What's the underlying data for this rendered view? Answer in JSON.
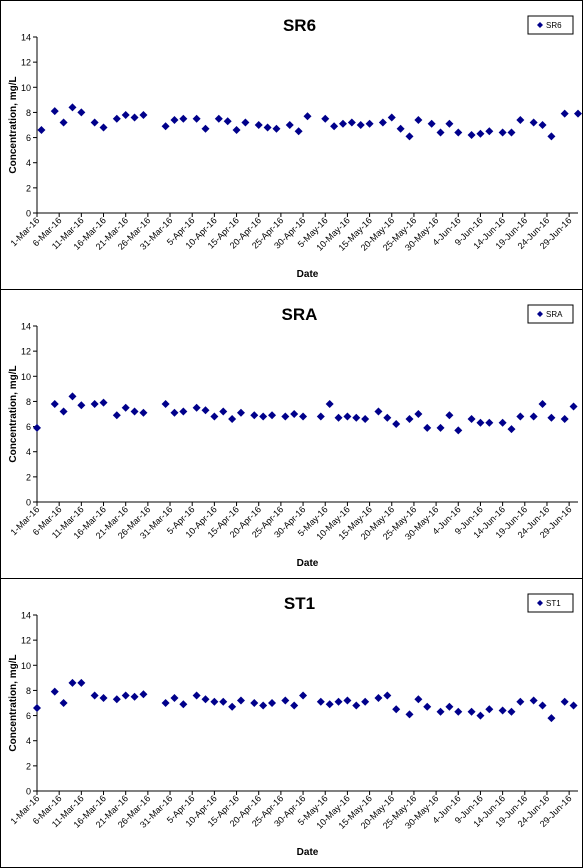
{
  "colors": {
    "marker": "#00008B",
    "axis": "#000000",
    "background": "#ffffff"
  },
  "chart_data": [
    {
      "type": "scatter",
      "title": "SR6",
      "xlabel": "Date",
      "ylabel": "Concentration, mg/L",
      "ylim": [
        0,
        14
      ],
      "yticks": [
        "0",
        "2",
        "4",
        "6",
        "8",
        "10",
        "12",
        "14"
      ],
      "xlim": [
        "2016-03-01",
        "2016-07-01"
      ],
      "xticks": [
        "1-Mar-16",
        "6-Mar-16",
        "11-Mar-16",
        "16-Mar-16",
        "21-Mar-16",
        "26-Mar-16",
        "31-Mar-16",
        "5-Apr-16",
        "10-Apr-16",
        "15-Apr-16",
        "20-Apr-16",
        "25-Apr-16",
        "30-Apr-16",
        "5-May-16",
        "10-May-16",
        "15-May-16",
        "20-May-16",
        "25-May-16",
        "30-May-16",
        "4-Jun-16",
        "9-Jun-16",
        "14-Jun-16",
        "19-Jun-16",
        "24-Jun-16",
        "29-Jun-16"
      ],
      "grid": false,
      "legend_position": "top-right",
      "series": [
        {
          "name": "SR6",
          "x": [
            "2016-03-02",
            "2016-03-05",
            "2016-03-07",
            "2016-03-09",
            "2016-03-11",
            "2016-03-14",
            "2016-03-16",
            "2016-03-19",
            "2016-03-21",
            "2016-03-23",
            "2016-03-25",
            "2016-03-30",
            "2016-04-01",
            "2016-04-03",
            "2016-04-06",
            "2016-04-08",
            "2016-04-11",
            "2016-04-13",
            "2016-04-15",
            "2016-04-17",
            "2016-04-20",
            "2016-04-22",
            "2016-04-24",
            "2016-04-27",
            "2016-04-29",
            "2016-05-01",
            "2016-05-05",
            "2016-05-07",
            "2016-05-09",
            "2016-05-11",
            "2016-05-13",
            "2016-05-15",
            "2016-05-18",
            "2016-05-20",
            "2016-05-22",
            "2016-05-24",
            "2016-05-26",
            "2016-05-29",
            "2016-05-31",
            "2016-06-02",
            "2016-06-04",
            "2016-06-07",
            "2016-06-09",
            "2016-06-11",
            "2016-06-14",
            "2016-06-16",
            "2016-06-18",
            "2016-06-21",
            "2016-06-23",
            "2016-06-25",
            "2016-06-28",
            "2016-07-01"
          ],
          "y": [
            6.6,
            8.1,
            7.2,
            8.4,
            8.0,
            7.2,
            6.8,
            7.5,
            7.8,
            7.6,
            7.8,
            6.9,
            7.4,
            7.5,
            7.5,
            6.7,
            7.5,
            7.3,
            6.6,
            7.2,
            7.0,
            6.8,
            6.7,
            7.0,
            6.5,
            7.7,
            7.5,
            6.9,
            7.1,
            7.2,
            7.0,
            7.1,
            7.2,
            7.6,
            6.7,
            6.1,
            7.4,
            7.1,
            6.4,
            7.1,
            6.4,
            6.2,
            6.3,
            6.5,
            6.4,
            6.4,
            7.4,
            7.2,
            7.0,
            6.1,
            7.9,
            7.9
          ]
        }
      ]
    },
    {
      "type": "scatter",
      "title": "SRA",
      "xlabel": "Date",
      "ylabel": "Concentration, mg/L",
      "ylim": [
        0,
        14
      ],
      "yticks": [
        "0",
        "2",
        "4",
        "6",
        "8",
        "10",
        "12",
        "14"
      ],
      "xlim": [
        "2016-03-01",
        "2016-07-01"
      ],
      "xticks": [
        "1-Mar-16",
        "6-Mar-16",
        "11-Mar-16",
        "16-Mar-16",
        "21-Mar-16",
        "26-Mar-16",
        "31-Mar-16",
        "5-Apr-16",
        "10-Apr-16",
        "15-Apr-16",
        "20-Apr-16",
        "25-Apr-16",
        "30-Apr-16",
        "5-May-16",
        "10-May-16",
        "15-May-16",
        "20-May-16",
        "25-May-16",
        "30-May-16",
        "4-Jun-16",
        "9-Jun-16",
        "14-Jun-16",
        "19-Jun-16",
        "24-Jun-16",
        "29-Jun-16"
      ],
      "grid": false,
      "legend_position": "top-right",
      "series": [
        {
          "name": "SRA",
          "x": [
            "2016-03-01",
            "2016-03-05",
            "2016-03-07",
            "2016-03-09",
            "2016-03-11",
            "2016-03-14",
            "2016-03-16",
            "2016-03-19",
            "2016-03-21",
            "2016-03-23",
            "2016-03-25",
            "2016-03-30",
            "2016-04-01",
            "2016-04-03",
            "2016-04-06",
            "2016-04-08",
            "2016-04-10",
            "2016-04-12",
            "2016-04-14",
            "2016-04-16",
            "2016-04-19",
            "2016-04-21",
            "2016-04-23",
            "2016-04-26",
            "2016-04-28",
            "2016-04-30",
            "2016-05-04",
            "2016-05-06",
            "2016-05-08",
            "2016-05-10",
            "2016-05-12",
            "2016-05-14",
            "2016-05-17",
            "2016-05-19",
            "2016-05-21",
            "2016-05-24",
            "2016-05-26",
            "2016-05-28",
            "2016-05-31",
            "2016-06-02",
            "2016-06-04",
            "2016-06-07",
            "2016-06-09",
            "2016-06-11",
            "2016-06-14",
            "2016-06-16",
            "2016-06-18",
            "2016-06-21",
            "2016-06-23",
            "2016-06-25",
            "2016-06-28",
            "2016-06-30"
          ],
          "y": [
            5.9,
            7.8,
            7.2,
            8.4,
            7.7,
            7.8,
            7.9,
            6.9,
            7.5,
            7.2,
            7.1,
            7.8,
            7.1,
            7.2,
            7.5,
            7.3,
            6.8,
            7.2,
            6.6,
            7.1,
            6.9,
            6.8,
            6.9,
            6.8,
            7.0,
            6.8,
            6.8,
            7.8,
            6.7,
            6.8,
            6.7,
            6.6,
            7.2,
            6.7,
            6.2,
            6.6,
            7.0,
            5.9,
            5.9,
            6.9,
            5.7,
            6.6,
            6.3,
            6.3,
            6.3,
            5.8,
            6.8,
            6.8,
            7.8,
            6.7,
            6.6,
            7.6
          ]
        }
      ]
    },
    {
      "type": "scatter",
      "title": "ST1",
      "xlabel": "Date",
      "ylabel": "Concentration, mg/L",
      "ylim": [
        0,
        14
      ],
      "yticks": [
        "0",
        "2",
        "4",
        "6",
        "8",
        "10",
        "12",
        "14"
      ],
      "xlim": [
        "2016-03-01",
        "2016-07-01"
      ],
      "xticks": [
        "1-Mar-16",
        "6-Mar-16",
        "11-Mar-16",
        "16-Mar-16",
        "21-Mar-16",
        "26-Mar-16",
        "31-Mar-16",
        "5-Apr-16",
        "10-Apr-16",
        "15-Apr-16",
        "20-Apr-16",
        "25-Apr-16",
        "30-Apr-16",
        "5-May-16",
        "10-May-16",
        "15-May-16",
        "20-May-16",
        "25-May-16",
        "30-May-16",
        "4-Jun-16",
        "9-Jun-16",
        "14-Jun-16",
        "19-Jun-16",
        "24-Jun-16",
        "29-Jun-16"
      ],
      "grid": false,
      "legend_position": "top-right",
      "series": [
        {
          "name": "ST1",
          "x": [
            "2016-03-01",
            "2016-03-05",
            "2016-03-07",
            "2016-03-09",
            "2016-03-11",
            "2016-03-14",
            "2016-03-16",
            "2016-03-19",
            "2016-03-21",
            "2016-03-23",
            "2016-03-25",
            "2016-03-30",
            "2016-04-01",
            "2016-04-03",
            "2016-04-06",
            "2016-04-08",
            "2016-04-10",
            "2016-04-12",
            "2016-04-14",
            "2016-04-16",
            "2016-04-19",
            "2016-04-21",
            "2016-04-23",
            "2016-04-26",
            "2016-04-28",
            "2016-04-30",
            "2016-05-04",
            "2016-05-06",
            "2016-05-08",
            "2016-05-10",
            "2016-05-12",
            "2016-05-14",
            "2016-05-17",
            "2016-05-19",
            "2016-05-21",
            "2016-05-24",
            "2016-05-26",
            "2016-05-28",
            "2016-05-31",
            "2016-06-02",
            "2016-06-04",
            "2016-06-07",
            "2016-06-09",
            "2016-06-11",
            "2016-06-14",
            "2016-06-16",
            "2016-06-18",
            "2016-06-21",
            "2016-06-23",
            "2016-06-25",
            "2016-06-28",
            "2016-06-30"
          ],
          "y": [
            6.6,
            7.9,
            7.0,
            8.6,
            8.6,
            7.6,
            7.4,
            7.3,
            7.6,
            7.5,
            7.7,
            7.0,
            7.4,
            6.9,
            7.6,
            7.3,
            7.1,
            7.1,
            6.7,
            7.2,
            7.0,
            6.8,
            7.0,
            7.2,
            6.8,
            7.6,
            7.1,
            6.9,
            7.1,
            7.2,
            6.8,
            7.1,
            7.4,
            7.6,
            6.5,
            6.1,
            7.3,
            6.7,
            6.3,
            6.7,
            6.3,
            6.3,
            6.0,
            6.5,
            6.4,
            6.3,
            7.1,
            7.2,
            6.8,
            5.8,
            7.1,
            6.8
          ]
        }
      ]
    }
  ]
}
